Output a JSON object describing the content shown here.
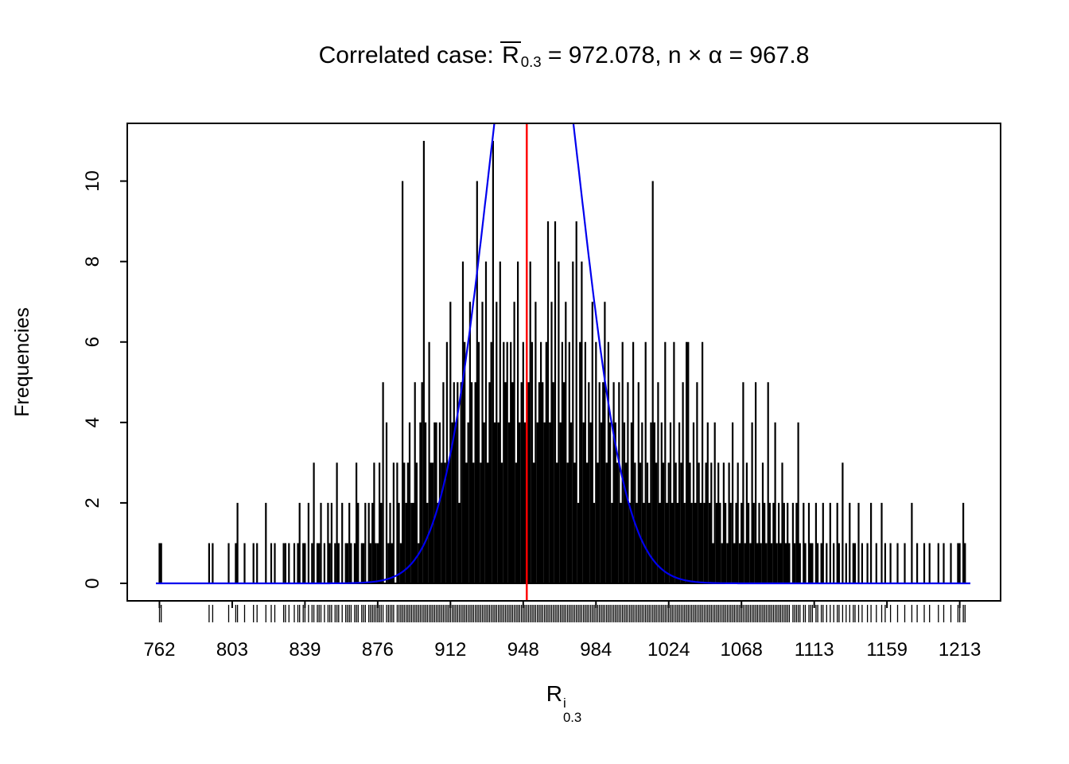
{
  "title": {
    "prefix": "Correlated case: ",
    "r_symbol": "R",
    "r_subscript": "0.3",
    "equals_value": " = 972.078, ",
    "n_alpha": "n × α = 967.8"
  },
  "x_axis_label": {
    "base": "R",
    "sup": "i",
    "sub": "0.3"
  },
  "chart_data": {
    "type": "bar",
    "title": "Correlated case: R̄_0.3 = 972.078, n × α = 967.8",
    "xlabel": "R^i_0.3",
    "ylabel": "Frequencies",
    "mean_value": 972.078,
    "n_times_alpha": 967.8,
    "x_tick_labels": [
      "762",
      "803",
      "839",
      "876",
      "912",
      "948",
      "984",
      "1024",
      "1068",
      "1113",
      "1159",
      "1213"
    ],
    "y_ticks": [
      0,
      2,
      4,
      6,
      8,
      10
    ],
    "ylim": [
      0,
      11
    ],
    "x_scale": "unique-value-index",
    "x_value_start": 760,
    "counts_legend": "one character per consecutive value starting at x_value_start; A=10, B=11",
    "counts_encoded": "0011000000000000000000000000001010000000010001200010000101000020010100001101001012011020130112010212013102011210132011202123113250412130321A32342253145B42633442435363745452586347535A63748356B4748365646573845647586374565469475938465736483926846354726354573642543526435246325342632 4A435243623426324352663242532623423142321321324123125132142512132152124121321210212410210211021012010201021030102011020100102001002010010001000100020010001001000 01001000100011021000",
    "colors": {
      "spikes": "#000000",
      "blue_curve": "#0000ee",
      "red_line": "#ff0000",
      "axis": "#000000"
    },
    "red_line": {
      "x_value": 967.8
    },
    "blue_curve": {
      "shape": "normal-density",
      "center_value": 972.078,
      "amplitude": 16.5,
      "sd_values": 26
    },
    "rug": true,
    "grid": false,
    "legend": "none",
    "layout": {
      "tick_indices": [
        2,
        43,
        84,
        125,
        166,
        207,
        248,
        289,
        330,
        371,
        412,
        453
      ],
      "red_line_index": 209,
      "blue_center_index": 213,
      "blue_sd_index": 26
    }
  }
}
